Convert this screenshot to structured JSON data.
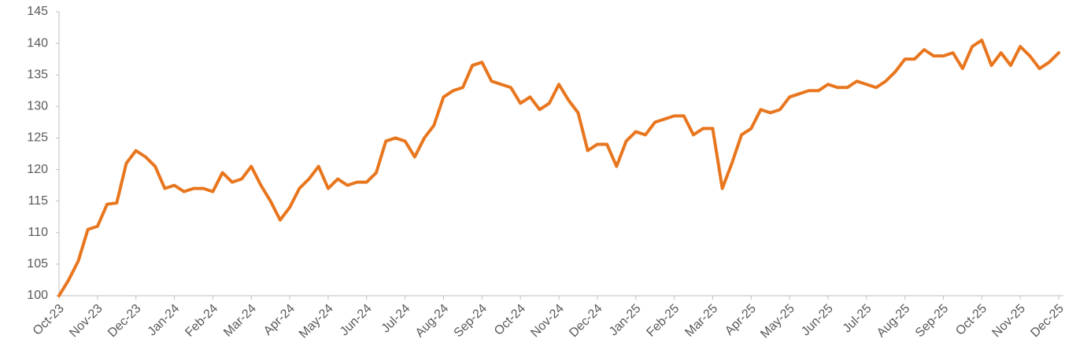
{
  "chart_data": {
    "type": "line",
    "categories": [
      "Oct-23",
      null,
      null,
      null,
      "Nov-23",
      null,
      null,
      null,
      "Dec-23",
      null,
      null,
      null,
      "Jan-24",
      null,
      null,
      null,
      "Feb-24",
      null,
      null,
      null,
      "Mar-24",
      null,
      null,
      null,
      "Apr-24",
      null,
      null,
      null,
      "May-24",
      null,
      null,
      null,
      "Jun-24",
      null,
      null,
      null,
      "Jul-24",
      null,
      null,
      null,
      "Aug-24",
      null,
      null,
      null,
      "Sep-24",
      null,
      null,
      null,
      "Oct-24",
      null,
      null,
      null,
      "Nov-24",
      null,
      null,
      null,
      "Dec-24",
      null,
      null,
      null,
      "Jan-25",
      null,
      null,
      null,
      "Feb-25",
      null,
      null,
      null,
      "Mar-25",
      null,
      null,
      null,
      "Apr-25",
      null,
      null,
      null,
      "May-25",
      null,
      null,
      null,
      "Jun-25",
      null,
      null,
      null,
      "Jul-25",
      null,
      null,
      null,
      "Aug-25",
      null,
      null,
      null,
      "Sep-25",
      null,
      null,
      null,
      "Oct-25",
      null,
      null,
      null,
      "Nov-25",
      null,
      null,
      null,
      "Dec-25"
    ],
    "values": [
      100,
      102.5,
      105.5,
      110.5,
      111,
      114.5,
      114.7,
      121,
      123,
      122,
      120.5,
      117,
      117.5,
      116.5,
      117,
      117,
      116.5,
      119.5,
      118,
      118.5,
      120.5,
      117.5,
      115,
      112,
      114,
      117,
      118.5,
      120.5,
      117,
      118.5,
      117.5,
      118,
      118,
      119.5,
      124.5,
      125,
      124.5,
      122,
      125,
      127,
      131.5,
      132.5,
      133,
      136.5,
      137,
      134,
      133.5,
      133,
      130.5,
      131.5,
      129.5,
      130.5,
      133.5,
      131,
      129,
      123,
      124,
      124,
      120.5,
      124.5,
      126,
      125.5,
      127.5,
      128,
      128.5,
      128.5,
      125.5,
      126.5,
      126.5,
      117,
      121,
      125.5,
      126.5,
      129.5,
      129,
      129.5,
      131.5,
      132,
      132.5,
      132.5,
      133.5,
      133,
      133,
      134,
      133.5,
      133,
      134,
      135.5,
      137.5,
      137.5,
      139,
      138,
      138,
      138.5,
      136,
      139.5,
      140.5,
      136.5,
      138.5,
      136.5,
      139.5,
      138,
      136,
      137,
      138.5
    ],
    "color": "#e8761e",
    "ylim": [
      100,
      145
    ],
    "yticks": [
      100,
      105,
      110,
      115,
      120,
      125,
      130,
      135,
      140,
      145
    ],
    "grid": false
  }
}
